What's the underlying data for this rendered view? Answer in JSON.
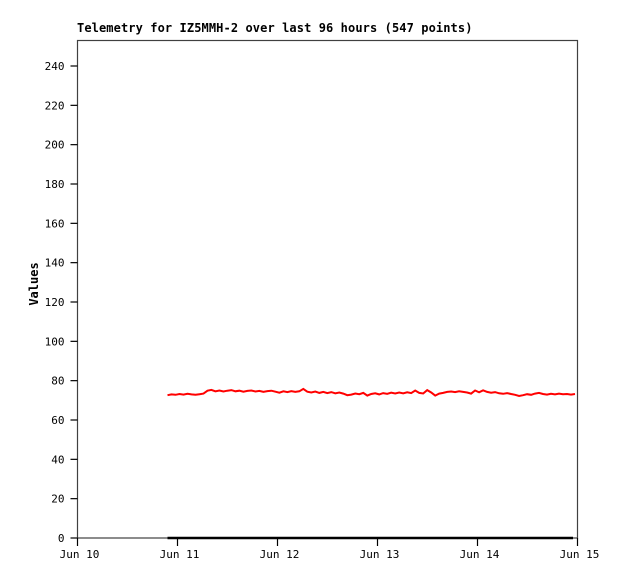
{
  "window": {
    "background": "#ffffff"
  },
  "chart_data": {
    "type": "line",
    "title": "Telemetry for IZ5MMH-2 over last 96 hours (547 points)",
    "ylabel": "Values",
    "xlabel": "",
    "grid": false,
    "legend": "none",
    "x_tick_labels": [
      "Jun 10",
      "Jun 11",
      "Jun 12",
      "Jun 13",
      "Jun 14",
      "Jun 15"
    ],
    "y_ticks": [
      0,
      20,
      40,
      60,
      80,
      100,
      120,
      140,
      160,
      180,
      200,
      220,
      240
    ],
    "ylim": [
      0,
      253
    ],
    "xlim_days": [
      0,
      5
    ],
    "colors": {
      "telemetry_series": "#ff0000",
      "zero_series": "#000000",
      "frame": "#404040",
      "tick": "#000000",
      "text": "#000000",
      "background": "#ffffff"
    },
    "series": [
      {
        "name": "telemetry-values",
        "color": "#ff0000",
        "stroke_width": 2,
        "x_start_day": 0.9,
        "x_end_day": 4.975,
        "values": [
          72.6,
          73.0,
          72.8,
          73.2,
          72.9,
          73.3,
          73.0,
          72.8,
          73.1,
          73.4,
          74.9,
          75.3,
          74.6,
          75.0,
          74.5,
          74.9,
          75.2,
          74.6,
          74.9,
          74.4,
          74.8,
          75.0,
          74.5,
          74.8,
          74.3,
          74.7,
          74.9,
          74.4,
          73.9,
          74.6,
          74.2,
          74.7,
          74.3,
          74.6,
          75.8,
          74.4,
          74.0,
          74.5,
          73.8,
          74.3,
          73.7,
          74.2,
          73.6,
          74.0,
          73.4,
          72.6,
          72.9,
          73.5,
          73.1,
          73.8,
          72.4,
          73.2,
          73.6,
          73.0,
          73.7,
          73.3,
          73.9,
          73.5,
          74.0,
          73.6,
          74.1,
          73.7,
          75.0,
          73.8,
          73.5,
          75.2,
          74.0,
          72.4,
          73.4,
          73.8,
          74.3,
          74.5,
          74.2,
          74.6,
          74.3,
          74.0,
          73.4,
          75.0,
          74.1,
          75.1,
          74.3,
          73.9,
          74.2,
          73.6,
          73.3,
          73.7,
          73.2,
          72.8,
          72.2,
          72.6,
          73.1,
          72.8,
          73.4,
          73.8,
          73.2,
          72.9,
          73.3,
          73.0,
          73.4,
          73.1,
          73.2,
          72.9,
          73.2
        ]
      },
      {
        "name": "zero-baseline",
        "color": "#000000",
        "stroke_width": 2.5,
        "x_start_day": 0.9,
        "x_end_day": 4.955,
        "values": [
          0,
          0
        ]
      }
    ]
  }
}
